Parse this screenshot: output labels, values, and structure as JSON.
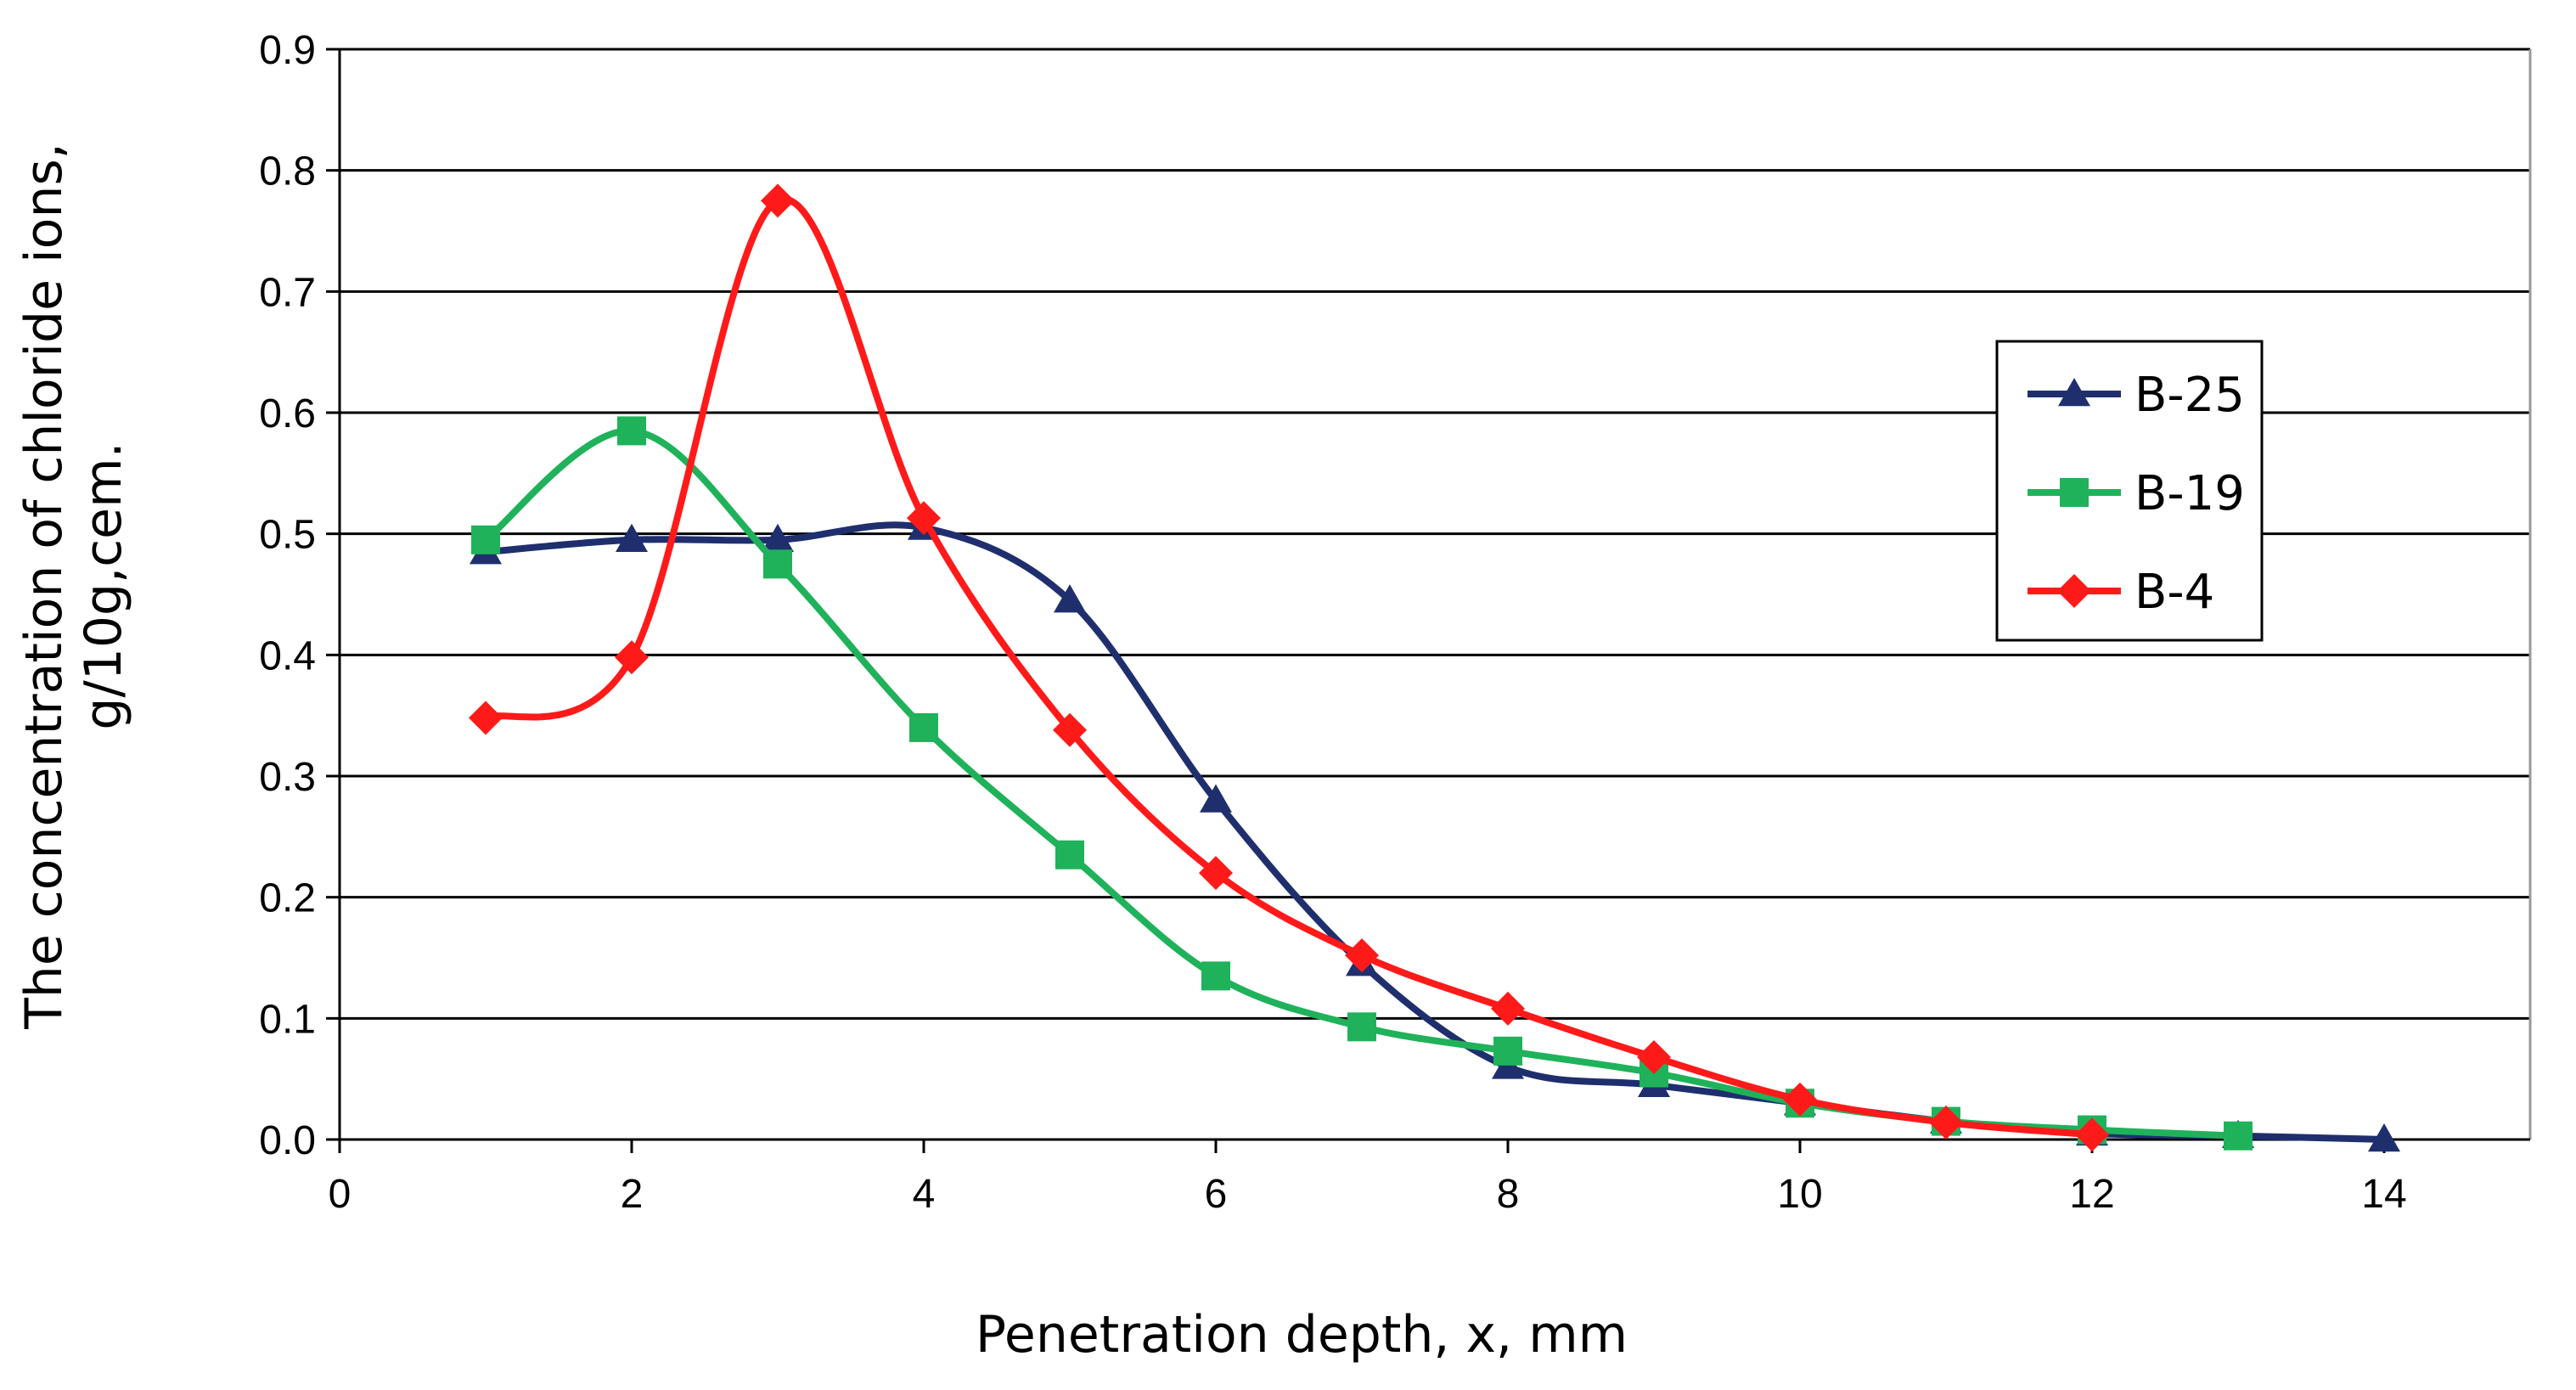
{
  "chart_data": {
    "type": "line",
    "smooth": true,
    "title": "",
    "xlabel": "Penetration depth, x, mm",
    "ylabel_lines": [
      "The concentration of chloride ions,",
      "g/10g,cem."
    ],
    "xlim": [
      0,
      15
    ],
    "ylim": [
      0,
      0.9
    ],
    "x_ticks": [
      0,
      2,
      4,
      6,
      8,
      10,
      12,
      14
    ],
    "y_ticks": [
      0,
      0.1,
      0.2,
      0.3,
      0.4,
      0.5,
      0.6,
      0.7,
      0.8,
      0.9
    ],
    "x_tick_labels": [
      "0",
      "2",
      "4",
      "6",
      "8",
      "10",
      "12",
      "14"
    ],
    "y_tick_labels": [
      "0.0",
      "0.1",
      "0.2",
      "0.3",
      "0.4",
      "0.5",
      "0.6",
      "0.7",
      "0.8",
      "0.9"
    ],
    "grid": "horizontal",
    "legend_position": "right",
    "series": [
      {
        "name": "B-25",
        "color": "#1f2f6e",
        "marker": "triangle",
        "x": [
          1,
          2,
          3,
          4,
          5,
          6,
          7,
          8,
          9,
          10,
          11,
          12,
          13,
          14
        ],
        "y": [
          0.485,
          0.495,
          0.495,
          0.505,
          0.445,
          0.28,
          0.145,
          0.06,
          0.045,
          0.03,
          0.015,
          0.005,
          0.003,
          0.0
        ]
      },
      {
        "name": "B-19",
        "color": "#1fb25a",
        "marker": "square",
        "x": [
          1,
          2,
          3,
          4,
          5,
          6,
          7,
          8,
          9,
          10,
          11,
          12,
          13
        ],
        "y": [
          0.495,
          0.585,
          0.475,
          0.34,
          0.235,
          0.135,
          0.093,
          0.073,
          0.055,
          0.03,
          0.015,
          0.008,
          0.003
        ]
      },
      {
        "name": "B-4",
        "color": "#ff1a1a",
        "marker": "diamond",
        "x": [
          1,
          2,
          3,
          4,
          5,
          6,
          7,
          8,
          9,
          10,
          11,
          12
        ],
        "y": [
          0.348,
          0.398,
          0.775,
          0.513,
          0.338,
          0.22,
          0.152,
          0.108,
          0.068,
          0.033,
          0.014,
          0.004
        ]
      }
    ]
  }
}
